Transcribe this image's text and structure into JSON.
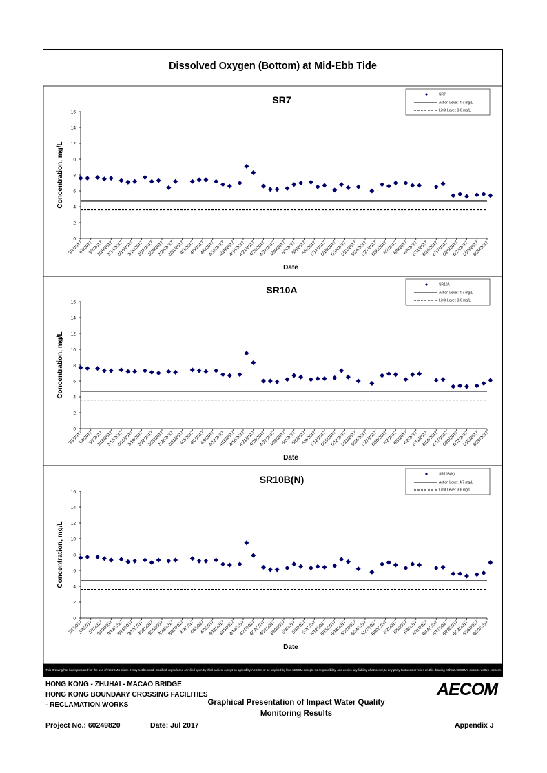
{
  "page": {
    "main_title": "Dissolved Oxygen (Bottom) at Mid-Ebb Tide",
    "disclaimer": "This Drawing has been prepared for the use of AECOM's client. It may not be used, modified, reproduced or relied upon by third parties, except as agreed by AECOM or as required by law. AECOM accepts no responsibility, and denies any liability whatsoever, to any party that uses or relies on this drawing without AECOM's express written consent.",
    "footer": {
      "line1": "HONG KONG - ZHUHAI - MACAO BRIDGE",
      "line2": "HONG KONG BOUNDARY CROSSING FACILITIES",
      "line3": "- RECLAMATION WORKS",
      "title_line1": "Graphical Presentation of Impact Water Quality",
      "title_line2": "Monitoring Results",
      "project_no": "Project No.: 60249820",
      "date": "Date: Jul 2017",
      "appendix": "Appendix J",
      "logo": "AECOM"
    }
  },
  "chart_data": [
    {
      "type": "scatter",
      "title": "SR7",
      "xlabel": "Date",
      "ylabel": "Concentration, mg/L",
      "ylim": [
        0,
        16
      ],
      "yticks": [
        0,
        2,
        4,
        6,
        8,
        10,
        12,
        14,
        16
      ],
      "x_tick_labels": [
        "3/1/2017",
        "3/4/2017",
        "3/7/2017",
        "3/10/2017",
        "3/13/2017",
        "3/16/2017",
        "3/19/2017",
        "3/22/2017",
        "3/25/2017",
        "3/28/2017",
        "3/31/2017",
        "4/3/2017",
        "4/6/2017",
        "4/9/2017",
        "4/12/2017",
        "4/15/2017",
        "4/18/2017",
        "4/21/2017",
        "4/24/2017",
        "4/27/2017",
        "4/30/2017",
        "5/3/2017",
        "5/6/2017",
        "5/9/2017",
        "5/12/2017",
        "5/15/2017",
        "5/18/2017",
        "5/21/2017",
        "5/24/2017",
        "5/27/2017",
        "5/30/2017",
        "6/2/2017",
        "6/5/2017",
        "6/8/2017",
        "6/11/2017",
        "6/14/2017",
        "6/17/2017",
        "6/20/2017",
        "6/23/2017",
        "6/26/2017",
        "6/29/2017"
      ],
      "legend": {
        "placement": "top-right",
        "entries": [
          "SR7",
          "Action Level: 4.7 mg/L",
          "Limit Level: 3.6 mg/L"
        ]
      },
      "action_level": 4.7,
      "limit_level": 3.6,
      "series": [
        {
          "name": "SR7",
          "points": [
            [
              "3/1/2017",
              7.6
            ],
            [
              "3/3/2017",
              7.6
            ],
            [
              "3/6/2017",
              7.7
            ],
            [
              "3/8/2017",
              7.5
            ],
            [
              "3/10/2017",
              7.6
            ],
            [
              "3/13/2017",
              7.3
            ],
            [
              "3/15/2017",
              7.1
            ],
            [
              "3/17/2017",
              7.2
            ],
            [
              "3/20/2017",
              7.7
            ],
            [
              "3/22/2017",
              7.2
            ],
            [
              "3/24/2017",
              7.3
            ],
            [
              "3/27/2017",
              6.4
            ],
            [
              "3/29/2017",
              7.2
            ],
            [
              "4/3/2017",
              7.2
            ],
            [
              "4/5/2017",
              7.4
            ],
            [
              "4/7/2017",
              7.4
            ],
            [
              "4/10/2017",
              7.2
            ],
            [
              "4/12/2017",
              6.8
            ],
            [
              "4/14/2017",
              6.6
            ],
            [
              "4/17/2017",
              7.0
            ],
            [
              "4/19/2017",
              9.1
            ],
            [
              "4/21/2017",
              8.3
            ],
            [
              "4/24/2017",
              6.6
            ],
            [
              "4/26/2017",
              6.2
            ],
            [
              "4/28/2017",
              6.2
            ],
            [
              "5/1/2017",
              6.3
            ],
            [
              "5/3/2017",
              6.8
            ],
            [
              "5/5/2017",
              7.0
            ],
            [
              "5/8/2017",
              7.1
            ],
            [
              "5/10/2017",
              6.5
            ],
            [
              "5/12/2017",
              6.7
            ],
            [
              "5/15/2017",
              6.1
            ],
            [
              "5/17/2017",
              6.8
            ],
            [
              "5/19/2017",
              6.4
            ],
            [
              "5/22/2017",
              6.5
            ],
            [
              "5/26/2017",
              6.0
            ],
            [
              "5/29/2017",
              6.8
            ],
            [
              "5/31/2017",
              6.6
            ],
            [
              "6/2/2017",
              7.0
            ],
            [
              "6/5/2017",
              7.0
            ],
            [
              "6/7/2017",
              6.7
            ],
            [
              "6/9/2017",
              6.7
            ],
            [
              "6/14/2017",
              6.5
            ],
            [
              "6/16/2017",
              6.9
            ],
            [
              "6/19/2017",
              5.4
            ],
            [
              "6/21/2017",
              5.6
            ],
            [
              "6/23/2017",
              5.3
            ],
            [
              "6/26/2017",
              5.5
            ],
            [
              "6/28/2017",
              5.6
            ],
            [
              "6/30/2017",
              5.4
            ]
          ]
        }
      ]
    },
    {
      "type": "scatter",
      "title": "SR10A",
      "xlabel": "Date",
      "ylabel": "Concentration, mg/L",
      "ylim": [
        0,
        16
      ],
      "yticks": [
        0,
        2,
        4,
        6,
        8,
        10,
        12,
        14,
        16
      ],
      "x_tick_labels": [
        "3/1/2017",
        "3/4/2017",
        "3/7/2017",
        "3/10/2017",
        "3/13/2017",
        "3/16/2017",
        "3/19/2017",
        "3/22/2017",
        "3/25/2017",
        "3/28/2017",
        "3/31/2017",
        "4/3/2017",
        "4/6/2017",
        "4/9/2017",
        "4/12/2017",
        "4/15/2017",
        "4/18/2017",
        "4/21/2017",
        "4/24/2017",
        "4/27/2017",
        "4/30/2017",
        "5/3/2017",
        "5/6/2017",
        "5/9/2017",
        "5/12/2017",
        "5/15/2017",
        "5/18/2017",
        "5/21/2017",
        "5/24/2017",
        "5/27/2017",
        "5/30/2017",
        "6/2/2017",
        "6/5/2017",
        "6/8/2017",
        "6/11/2017",
        "6/14/2017",
        "6/17/2017",
        "6/20/2017",
        "6/23/2017",
        "6/26/2017",
        "6/29/2017"
      ],
      "legend": {
        "placement": "top-right",
        "entries": [
          "SR10A",
          "Action Level: 4.7 mg/L",
          "Limit Level: 3.6 mg/L"
        ]
      },
      "action_level": 4.7,
      "limit_level": 3.6,
      "series": [
        {
          "name": "SR10A",
          "points": [
            [
              "3/1/2017",
              7.7
            ],
            [
              "3/3/2017",
              7.6
            ],
            [
              "3/6/2017",
              7.6
            ],
            [
              "3/8/2017",
              7.3
            ],
            [
              "3/10/2017",
              7.3
            ],
            [
              "3/13/2017",
              7.4
            ],
            [
              "3/15/2017",
              7.2
            ],
            [
              "3/17/2017",
              7.2
            ],
            [
              "3/20/2017",
              7.3
            ],
            [
              "3/22/2017",
              7.1
            ],
            [
              "3/24/2017",
              7.0
            ],
            [
              "3/27/2017",
              7.2
            ],
            [
              "3/29/2017",
              7.1
            ],
            [
              "4/3/2017",
              7.4
            ],
            [
              "4/5/2017",
              7.3
            ],
            [
              "4/7/2017",
              7.2
            ],
            [
              "4/10/2017",
              7.3
            ],
            [
              "4/12/2017",
              6.8
            ],
            [
              "4/14/2017",
              6.7
            ],
            [
              "4/17/2017",
              6.8
            ],
            [
              "4/19/2017",
              9.5
            ],
            [
              "4/21/2017",
              8.3
            ],
            [
              "4/24/2017",
              6.0
            ],
            [
              "4/26/2017",
              6.0
            ],
            [
              "4/28/2017",
              5.9
            ],
            [
              "5/1/2017",
              6.2
            ],
            [
              "5/3/2017",
              6.7
            ],
            [
              "5/5/2017",
              6.5
            ],
            [
              "5/8/2017",
              6.2
            ],
            [
              "5/10/2017",
              6.3
            ],
            [
              "5/12/2017",
              6.3
            ],
            [
              "5/15/2017",
              6.4
            ],
            [
              "5/17/2017",
              7.3
            ],
            [
              "5/19/2017",
              6.5
            ],
            [
              "5/22/2017",
              6.0
            ],
            [
              "5/26/2017",
              5.7
            ],
            [
              "5/29/2017",
              6.7
            ],
            [
              "5/31/2017",
              6.9
            ],
            [
              "6/2/2017",
              6.8
            ],
            [
              "6/5/2017",
              6.2
            ],
            [
              "6/7/2017",
              6.8
            ],
            [
              "6/9/2017",
              6.9
            ],
            [
              "6/14/2017",
              6.1
            ],
            [
              "6/16/2017",
              6.2
            ],
            [
              "6/19/2017",
              5.3
            ],
            [
              "6/21/2017",
              5.4
            ],
            [
              "6/23/2017",
              5.3
            ],
            [
              "6/26/2017",
              5.4
            ],
            [
              "6/28/2017",
              5.7
            ],
            [
              "6/30/2017",
              6.1
            ]
          ]
        }
      ]
    },
    {
      "type": "scatter",
      "title": "SR10B(N)",
      "xlabel": "Date",
      "ylabel": "Concentration, mg/L",
      "ylim": [
        0,
        16
      ],
      "yticks": [
        0,
        2,
        4,
        6,
        8,
        10,
        12,
        14,
        16
      ],
      "x_tick_labels": [
        "3/1/2017",
        "3/4/2017",
        "3/7/2017",
        "3/10/2017",
        "3/13/2017",
        "3/16/2017",
        "3/19/2017",
        "3/22/2017",
        "3/25/2017",
        "3/28/2017",
        "3/31/2017",
        "4/3/2017",
        "4/6/2017",
        "4/9/2017",
        "4/12/2017",
        "4/15/2017",
        "4/18/2017",
        "4/21/2017",
        "4/24/2017",
        "4/27/2017",
        "4/30/2017",
        "5/3/2017",
        "5/6/2017",
        "5/9/2017",
        "5/12/2017",
        "5/15/2017",
        "5/18/2017",
        "5/21/2017",
        "5/24/2017",
        "5/27/2017",
        "5/30/2017",
        "6/2/2017",
        "6/5/2017",
        "6/8/2017",
        "6/11/2017",
        "6/14/2017",
        "6/17/2017",
        "6/20/2017",
        "6/23/2017",
        "6/26/2017",
        "6/29/2017"
      ],
      "legend": {
        "placement": "top-right",
        "entries": [
          "SR10B(N)",
          "Action Level: 4.7 mg/L",
          "Limit Level: 3.6 mg/L"
        ]
      },
      "action_level": 4.7,
      "limit_level": 3.6,
      "series": [
        {
          "name": "SR10B(N)",
          "points": [
            [
              "3/1/2017",
              7.6
            ],
            [
              "3/3/2017",
              7.7
            ],
            [
              "3/6/2017",
              7.7
            ],
            [
              "3/8/2017",
              7.5
            ],
            [
              "3/10/2017",
              7.3
            ],
            [
              "3/13/2017",
              7.4
            ],
            [
              "3/15/2017",
              7.1
            ],
            [
              "3/17/2017",
              7.2
            ],
            [
              "3/20/2017",
              7.3
            ],
            [
              "3/22/2017",
              7.0
            ],
            [
              "3/24/2017",
              7.3
            ],
            [
              "3/27/2017",
              7.2
            ],
            [
              "3/29/2017",
              7.3
            ],
            [
              "4/3/2017",
              7.5
            ],
            [
              "4/5/2017",
              7.2
            ],
            [
              "4/7/2017",
              7.2
            ],
            [
              "4/10/2017",
              7.3
            ],
            [
              "4/12/2017",
              6.8
            ],
            [
              "4/14/2017",
              6.7
            ],
            [
              "4/17/2017",
              6.8
            ],
            [
              "4/19/2017",
              9.5
            ],
            [
              "4/21/2017",
              7.9
            ],
            [
              "4/24/2017",
              6.4
            ],
            [
              "4/26/2017",
              6.1
            ],
            [
              "4/28/2017",
              6.1
            ],
            [
              "5/1/2017",
              6.3
            ],
            [
              "5/3/2017",
              6.8
            ],
            [
              "5/5/2017",
              6.5
            ],
            [
              "5/8/2017",
              6.3
            ],
            [
              "5/10/2017",
              6.5
            ],
            [
              "5/12/2017",
              6.4
            ],
            [
              "5/15/2017",
              6.6
            ],
            [
              "5/17/2017",
              7.4
            ],
            [
              "5/19/2017",
              7.1
            ],
            [
              "5/22/2017",
              6.2
            ],
            [
              "5/26/2017",
              5.8
            ],
            [
              "5/29/2017",
              6.8
            ],
            [
              "5/31/2017",
              7.0
            ],
            [
              "6/2/2017",
              6.7
            ],
            [
              "6/5/2017",
              6.3
            ],
            [
              "6/7/2017",
              6.8
            ],
            [
              "6/9/2017",
              6.7
            ],
            [
              "6/14/2017",
              6.3
            ],
            [
              "6/16/2017",
              6.4
            ],
            [
              "6/19/2017",
              5.6
            ],
            [
              "6/21/2017",
              5.6
            ],
            [
              "6/23/2017",
              5.3
            ],
            [
              "6/26/2017",
              5.5
            ],
            [
              "6/28/2017",
              5.7
            ],
            [
              "6/30/2017",
              7.0
            ]
          ]
        }
      ]
    }
  ]
}
